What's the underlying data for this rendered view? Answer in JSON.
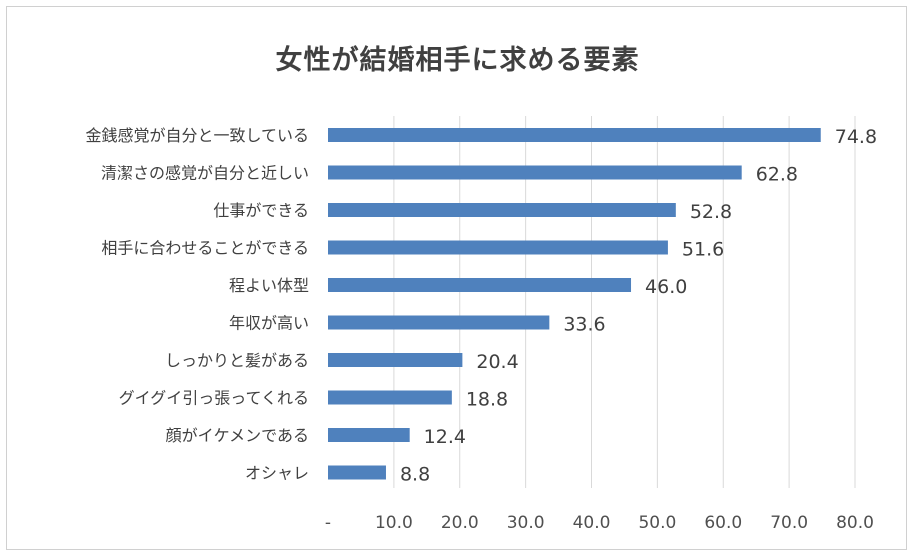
{
  "chart_data": {
    "type": "bar",
    "orientation": "horizontal",
    "title": "女性が結婚相手に求める要素",
    "categories": [
      "金銭感覚が自分と一致している",
      "清潔さの感覚が自分と近しい",
      "仕事ができる",
      "相手に合わせることができる",
      "程よい体型",
      "年収が高い",
      "しっかりと髪がある",
      "グイグイ引っ張ってくれる",
      "顔がイケメンである",
      "オシャレ"
    ],
    "values": [
      74.8,
      62.8,
      52.8,
      51.6,
      46.0,
      33.6,
      20.4,
      18.8,
      12.4,
      8.8
    ],
    "value_labels": [
      "74.8",
      "62.8",
      "52.8",
      "51.6",
      "46.0",
      "33.6",
      "20.4",
      "18.8",
      "12.4",
      "8.8"
    ],
    "xlim": [
      0,
      80
    ],
    "x_ticks": [
      0,
      10,
      20,
      30,
      40,
      50,
      60,
      70,
      80
    ],
    "x_tick_labels": [
      "-",
      "10.0",
      "20.0",
      "30.0",
      "40.0",
      "50.0",
      "60.0",
      "70.0",
      "80.0"
    ],
    "grid": "vertical",
    "bar_color": "#4f81bd",
    "grid_color": "#d9d9d9"
  }
}
